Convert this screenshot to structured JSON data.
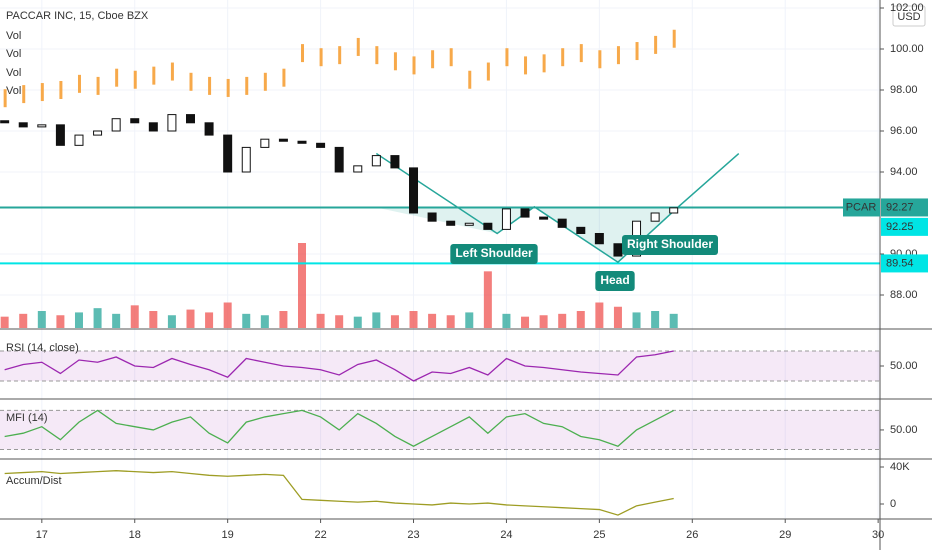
{
  "chart_data": {
    "type": "candlestick",
    "title": "PACCAR INC, 15, Cboe BZX",
    "currency": "USD",
    "legend_items": [
      "Vol",
      "Vol",
      "Vol",
      "Vol"
    ],
    "up_color": "#26a69a",
    "down_color": "#ef5350",
    "xlim": [
      -0.45,
      9.02
    ],
    "xticks": [
      {
        "value": 0,
        "label": "17"
      },
      {
        "value": 1,
        "label": "18"
      },
      {
        "value": 2,
        "label": "19"
      },
      {
        "value": 3,
        "label": "22"
      },
      {
        "value": 4,
        "label": "23"
      },
      {
        "value": 5,
        "label": "24"
      },
      {
        "value": 6,
        "label": "25"
      },
      {
        "value": 7,
        "label": "26"
      },
      {
        "value": 8,
        "label": "29"
      },
      {
        "value": 9,
        "label": "30"
      }
    ],
    "ylim": [
      86.39,
      102.39
    ],
    "yticks": [
      {
        "value": 88,
        "label": "88.00"
      },
      {
        "value": 90,
        "label": "90.00"
      },
      {
        "value": 94,
        "label": "94.00"
      },
      {
        "value": 96,
        "label": "96.00"
      },
      {
        "value": 98,
        "label": "98.00"
      },
      {
        "value": 100,
        "label": "100.00"
      },
      {
        "value": 102,
        "label": "102.00"
      }
    ],
    "x": [
      -0.4,
      -0.2,
      0,
      0.2,
      0.4,
      0.6,
      0.8,
      1,
      1.2,
      1.4,
      1.6,
      1.8,
      2,
      2.2,
      2.4,
      2.6,
      2.8,
      3,
      3.2,
      3.4,
      3.6,
      3.8,
      4,
      4.2,
      4.4,
      4.6,
      4.8,
      5,
      5.2,
      5.4,
      5.6,
      5.8,
      6,
      6.2,
      6.4,
      6.6,
      6.8
    ],
    "open": [
      96.5,
      96.4,
      96.2,
      96.3,
      95.3,
      95.8,
      96.0,
      96.6,
      96.4,
      96.0,
      96.8,
      96.4,
      95.8,
      94.0,
      95.2,
      95.6,
      95.5,
      95.4,
      95.2,
      94.0,
      94.3,
      94.8,
      94.2,
      92.0,
      91.6,
      91.4,
      91.5,
      91.2,
      92.2,
      91.8,
      91.7,
      91.3,
      91.0,
      90.5,
      89.9,
      91.6,
      92.0
    ],
    "close": [
      96.4,
      96.2,
      96.3,
      95.3,
      95.8,
      96.0,
      96.6,
      96.4,
      96.0,
      96.8,
      96.4,
      95.8,
      94.0,
      95.2,
      95.6,
      95.5,
      95.4,
      95.2,
      94.0,
      94.3,
      94.8,
      94.2,
      92.0,
      91.6,
      91.4,
      91.5,
      91.2,
      92.2,
      91.8,
      91.7,
      91.3,
      91.0,
      90.5,
      89.9,
      91.6,
      92.0,
      92.25
    ],
    "overlay": {
      "color": "#f7a94a",
      "values": [
        97.6,
        97.8,
        97.9,
        98.0,
        98.3,
        98.2,
        98.6,
        98.5,
        98.7,
        98.9,
        98.4,
        98.2,
        98.1,
        98.2,
        98.4,
        98.6,
        99.8,
        99.6,
        99.7,
        100.1,
        99.7,
        99.4,
        99.2,
        99.5,
        99.6,
        98.5,
        98.9,
        99.6,
        99.2,
        99.3,
        99.6,
        99.8,
        99.5,
        99.7,
        99.9,
        100.2,
        100.5
      ]
    },
    "volume": [
      8,
      10,
      12,
      9,
      11,
      14,
      10,
      16,
      12,
      9,
      13,
      11,
      18,
      10,
      9,
      12,
      60,
      10,
      9,
      8,
      11,
      9,
      12,
      10,
      9,
      11,
      40,
      10,
      8,
      9,
      10,
      12,
      18,
      15,
      11,
      12,
      10
    ],
    "levels": [
      {
        "value": 92.27,
        "label": "92.27",
        "name": "PCAR",
        "color": "#26a69a"
      },
      {
        "value": 92.25,
        "label": "92.25",
        "color": "#00e5e5"
      },
      {
        "value": 89.54,
        "label": "89.54",
        "color": "#00e5e5"
      }
    ],
    "pattern": {
      "color": "#26a69a",
      "x": [
        3.6,
        4.9,
        5.3,
        6.2,
        6.85,
        7.5
      ],
      "y": [
        94.9,
        91.0,
        92.3,
        89.6,
        92.3,
        94.9
      ]
    },
    "annotations": [
      "Left Shoulder",
      "Head",
      "Right Shoulder"
    ],
    "rsi": {
      "title": "RSI (14, close)",
      "color": "#9c27b0",
      "ylim": [
        7.3,
        98
      ],
      "band": [
        30,
        70
      ],
      "yticks": [
        {
          "value": 50,
          "label": "50.00"
        }
      ],
      "values": [
        45,
        52,
        55,
        40,
        58,
        55,
        62,
        50,
        48,
        60,
        52,
        45,
        35,
        60,
        55,
        50,
        48,
        45,
        38,
        52,
        58,
        45,
        30,
        42,
        40,
        48,
        38,
        60,
        50,
        48,
        45,
        42,
        40,
        38,
        62,
        65,
        70
      ]
    },
    "mfi": {
      "title": "MFI (14)",
      "color": "#4caf50",
      "ylim": [
        6.9,
        96
      ],
      "band": [
        20,
        80
      ],
      "yticks": [
        {
          "value": 50,
          "label": "50.00"
        }
      ],
      "values": [
        40,
        45,
        55,
        35,
        62,
        80,
        60,
        55,
        50,
        62,
        70,
        45,
        30,
        62,
        70,
        75,
        80,
        70,
        50,
        75,
        60,
        40,
        25,
        40,
        55,
        70,
        45,
        70,
        75,
        60,
        55,
        40,
        35,
        25,
        50,
        65,
        80
      ]
    },
    "accum": {
      "title": "Accum/Dist",
      "color": "#9e9d24",
      "ylim": [
        -17297,
        47568
      ],
      "yticks": [
        {
          "value": 40000,
          "label": "40K"
        },
        0
      ],
      "values": [
        33000,
        34000,
        35000,
        33000,
        34000,
        35000,
        36000,
        35000,
        34000,
        35000,
        33000,
        31000,
        30000,
        31000,
        32000,
        31000,
        5000,
        4000,
        3000,
        2000,
        3000,
        1000,
        0,
        -1000,
        1000,
        0,
        1000,
        -1000,
        -2000,
        -3000,
        -4000,
        -5000,
        -6000,
        -12000,
        -2000,
        2000,
        6000
      ]
    }
  }
}
